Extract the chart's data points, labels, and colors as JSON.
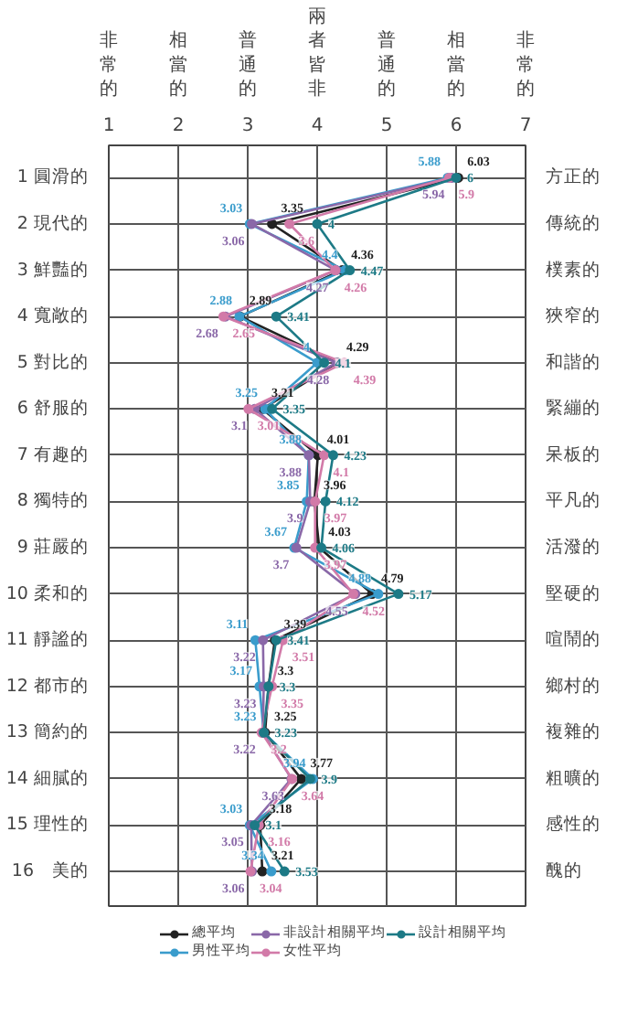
{
  "chart_data": {
    "type": "line",
    "orientation": "horizontal",
    "categories": [
      "1 圓滑的",
      "2 現代的",
      "3 鮮豔的",
      "4 寬敞的",
      "5 對比的",
      "6 舒服的",
      "7 有趣的",
      "8 獨特的",
      "9 莊嚴的",
      "10 柔和的",
      "11 靜謐的",
      "12 都市的",
      "13 簡約的",
      "14 細膩的",
      "15 理性的",
      "16　美的"
    ],
    "y2_categories": [
      "方正的",
      "傳統的",
      "樸素的",
      "狹窄的",
      "和諧的",
      "緊繃的",
      "呆板的",
      "平凡的",
      "活潑的",
      "堅硬的",
      "喧鬧的",
      "鄉村的",
      "複雜的",
      "粗曠的",
      "感性的",
      "醜的"
    ],
    "xlim": [
      1,
      7
    ],
    "xticks": [
      1,
      2,
      3,
      4,
      5,
      6,
      7
    ],
    "annotations": [
      "非常的",
      "相當的",
      "普通的",
      "兩者皆非",
      "普通的",
      "相當的",
      "非常的"
    ],
    "grid": true,
    "legend": "bottom",
    "marker": "circle",
    "data_labels": true,
    "series": [
      {
        "name": "總平均",
        "color": "#222222",
        "values": [
          6.03,
          3.35,
          4.36,
          2.89,
          4.29,
          3.21,
          4.01,
          3.96,
          4.03,
          4.79,
          3.39,
          3.3,
          3.25,
          3.77,
          3.18,
          3.21
        ]
      },
      {
        "name": "男性平均",
        "color": "#3a9ccc",
        "values": [
          5.88,
          3.03,
          4.4,
          2.88,
          4,
          3.25,
          3.88,
          3.85,
          3.67,
          4.88,
          3.11,
          3.17,
          3.23,
          3.94,
          3.03,
          3.34
        ]
      },
      {
        "name": "非設計相關平均",
        "color": "#8a68a8",
        "values": [
          5.94,
          3.06,
          4.27,
          2.68,
          4.28,
          3.1,
          3.88,
          3.9,
          3.7,
          4.55,
          3.22,
          3.23,
          3.22,
          3.63,
          3.05,
          3.06
        ]
      },
      {
        "name": "女性平均",
        "color": "#d27aa8",
        "values": [
          5.9,
          3.6,
          4.26,
          2.65,
          4.39,
          3.01,
          4.1,
          3.97,
          3.97,
          4.52,
          3.51,
          3.35,
          3.2,
          3.64,
          3.16,
          3.04
        ]
      },
      {
        "name": "設計相關平均",
        "color": "#1d7a86",
        "values": [
          6,
          4,
          4.47,
          3.41,
          4.1,
          3.35,
          4.23,
          4.12,
          4.06,
          5.17,
          3.41,
          3.3,
          3.23,
          3.9,
          3.1,
          3.53
        ]
      }
    ]
  }
}
